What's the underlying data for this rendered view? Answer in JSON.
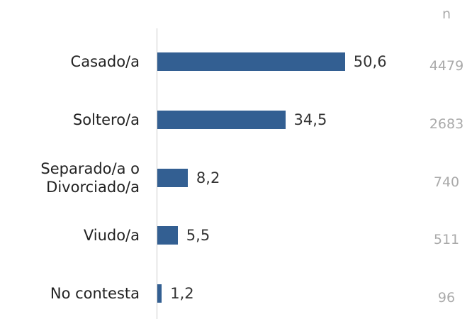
{
  "chart_data": {
    "type": "bar",
    "orientation": "horizontal",
    "categories": [
      "Casado/a",
      "Soltero/a",
      "Separado/a o Divorciado/a",
      "Viudo/a",
      "No contesta"
    ],
    "values": [
      50.6,
      34.5,
      8.2,
      5.5,
      1.2
    ],
    "value_labels": [
      "50,6",
      "34,5",
      "8,2",
      "5,5",
      "1,2"
    ],
    "color": "#335f92",
    "xlim": [
      0,
      60
    ],
    "n_label": "n",
    "n_values": [
      4479,
      2683,
      740,
      511,
      96
    ]
  }
}
